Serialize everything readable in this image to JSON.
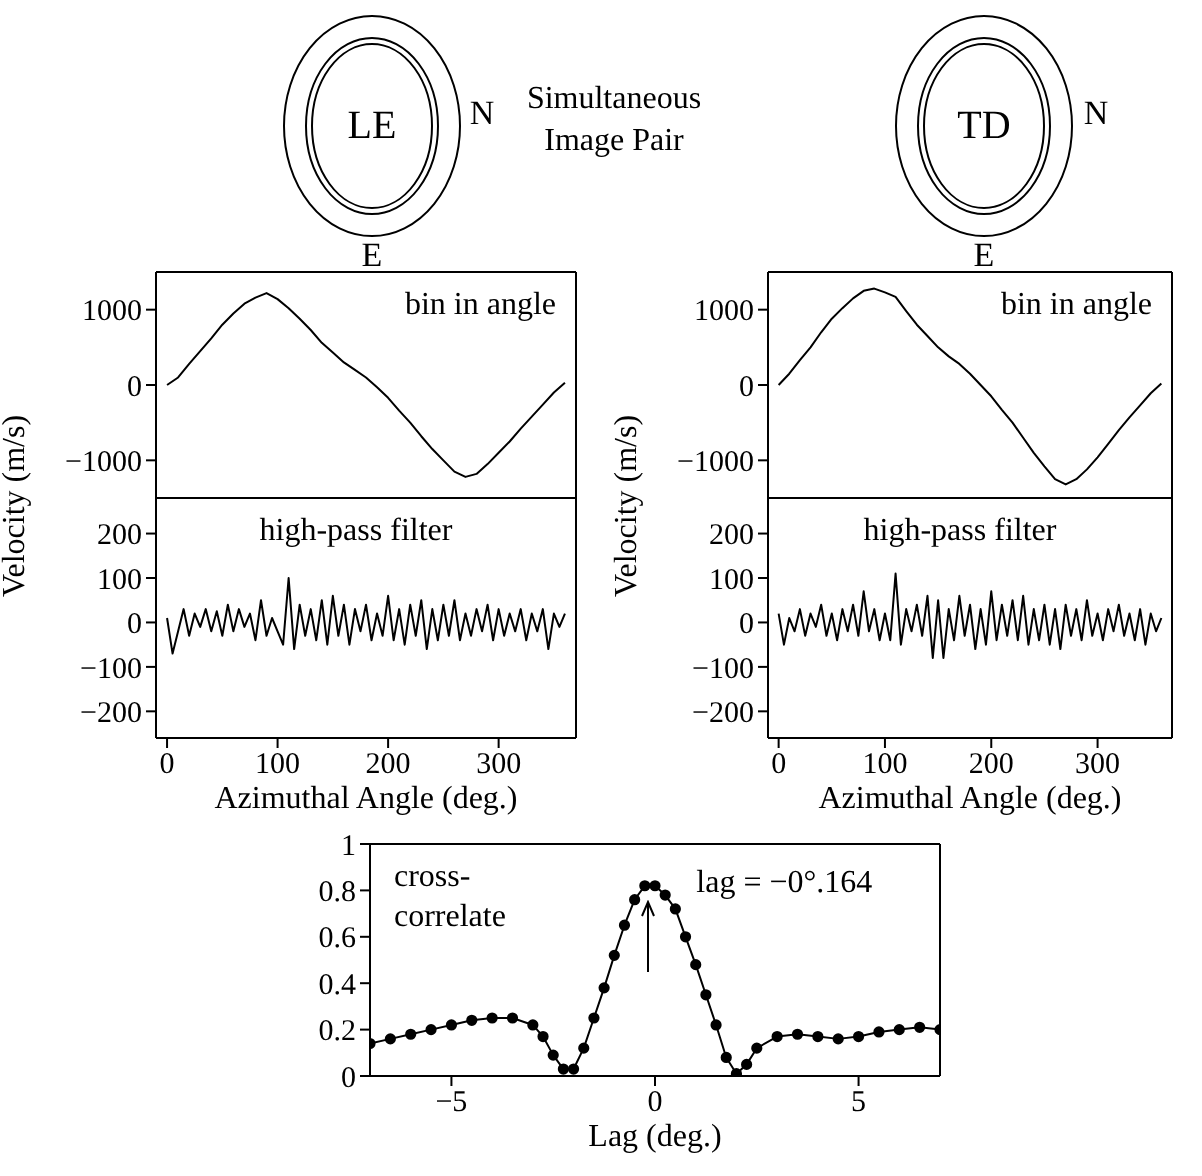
{
  "chart_data": [
    {
      "type": "other",
      "annotations": [
        "LE",
        "N",
        "E",
        "Simultaneous Image Pair",
        "TD",
        "N",
        "E"
      ]
    },
    {
      "type": "line",
      "annotations": [
        "bin in angle"
      ],
      "ylabel": "Velocity (m/s)",
      "tick_labels": "y",
      "xlim": [
        -10,
        370
      ],
      "xticks": [
        0,
        100,
        200,
        300
      ],
      "ylim": [
        -1500,
        1500
      ],
      "yticks": [
        -1000,
        0,
        1000
      ],
      "color": "#000000",
      "x": [
        0,
        10,
        20,
        30,
        40,
        50,
        60,
        70,
        80,
        90,
        100,
        110,
        120,
        130,
        140,
        150,
        160,
        170,
        180,
        190,
        200,
        210,
        220,
        230,
        240,
        250,
        260,
        270,
        280,
        290,
        300,
        310,
        320,
        330,
        340,
        350,
        360
      ],
      "values": [
        0,
        100,
        280,
        450,
        620,
        800,
        950,
        1080,
        1160,
        1220,
        1140,
        1020,
        880,
        730,
        560,
        430,
        300,
        200,
        100,
        -30,
        -170,
        -340,
        -500,
        -680,
        -850,
        -1000,
        -1150,
        -1220,
        -1180,
        -1050,
        -900,
        -750,
        -580,
        -420,
        -260,
        -100,
        30
      ]
    },
    {
      "type": "line",
      "annotations": [
        "high-pass filter"
      ],
      "xlabel": "Azimuthal Angle (deg.)",
      "xlim": [
        -10,
        370
      ],
      "xticks": [
        0,
        100,
        200,
        300
      ],
      "ylim": [
        -260,
        280
      ],
      "yticks": [
        -200,
        -100,
        0,
        100,
        200
      ],
      "color": "#000000",
      "x": [
        0,
        5,
        10,
        15,
        20,
        25,
        30,
        35,
        40,
        45,
        50,
        55,
        60,
        65,
        70,
        75,
        80,
        85,
        90,
        95,
        100,
        105,
        110,
        115,
        120,
        125,
        130,
        135,
        140,
        145,
        150,
        155,
        160,
        165,
        170,
        175,
        180,
        185,
        190,
        195,
        200,
        205,
        210,
        215,
        220,
        225,
        230,
        235,
        240,
        245,
        250,
        255,
        260,
        265,
        270,
        275,
        280,
        285,
        290,
        295,
        300,
        305,
        310,
        315,
        320,
        325,
        330,
        335,
        340,
        345,
        350,
        355,
        360
      ],
      "values": [
        10,
        -70,
        -20,
        30,
        -30,
        20,
        -10,
        30,
        -20,
        25,
        -30,
        40,
        -20,
        30,
        -10,
        20,
        -40,
        50,
        -30,
        10,
        -20,
        -50,
        100,
        -60,
        40,
        -30,
        30,
        -40,
        50,
        -50,
        60,
        -30,
        40,
        -50,
        30,
        -20,
        40,
        -40,
        20,
        -30,
        60,
        -40,
        30,
        -50,
        40,
        -30,
        50,
        -60,
        30,
        -40,
        40,
        -30,
        50,
        -40,
        20,
        -30,
        30,
        -20,
        40,
        -40,
        30,
        -30,
        20,
        -20,
        30,
        -40,
        20,
        -20,
        30,
        -60,
        20,
        -10,
        20
      ]
    },
    {
      "type": "line",
      "annotations": [
        "bin in angle"
      ],
      "ylabel": "Velocity (m/s)",
      "tick_labels": "y",
      "xlim": [
        -10,
        370
      ],
      "xticks": [
        0,
        100,
        200,
        300
      ],
      "ylim": [
        -1500,
        1500
      ],
      "yticks": [
        -1000,
        0,
        1000
      ],
      "color": "#000000",
      "x": [
        0,
        10,
        20,
        30,
        40,
        50,
        60,
        70,
        80,
        90,
        100,
        110,
        120,
        130,
        140,
        150,
        160,
        170,
        180,
        190,
        200,
        210,
        220,
        230,
        240,
        250,
        260,
        270,
        280,
        290,
        300,
        310,
        320,
        330,
        340,
        350,
        360
      ],
      "values": [
        0,
        150,
        330,
        500,
        700,
        880,
        1020,
        1150,
        1250,
        1280,
        1230,
        1170,
        980,
        800,
        650,
        500,
        380,
        280,
        150,
        0,
        -150,
        -330,
        -500,
        -700,
        -900,
        -1080,
        -1250,
        -1320,
        -1250,
        -1120,
        -960,
        -780,
        -600,
        -430,
        -270,
        -110,
        20
      ]
    },
    {
      "type": "line",
      "annotations": [
        "high-pass filter"
      ],
      "xlabel": "Azimuthal Angle (deg.)",
      "xlim": [
        -10,
        370
      ],
      "xticks": [
        0,
        100,
        200,
        300
      ],
      "ylim": [
        -260,
        280
      ],
      "yticks": [
        -200,
        -100,
        0,
        100,
        200
      ],
      "color": "#000000",
      "x": [
        0,
        5,
        10,
        15,
        20,
        25,
        30,
        35,
        40,
        45,
        50,
        55,
        60,
        65,
        70,
        75,
        80,
        85,
        90,
        95,
        100,
        105,
        110,
        115,
        120,
        125,
        130,
        135,
        140,
        145,
        150,
        155,
        160,
        165,
        170,
        175,
        180,
        185,
        190,
        195,
        200,
        205,
        210,
        215,
        220,
        225,
        230,
        235,
        240,
        245,
        250,
        255,
        260,
        265,
        270,
        275,
        280,
        285,
        290,
        295,
        300,
        305,
        310,
        315,
        320,
        325,
        330,
        335,
        340,
        345,
        350,
        355,
        360
      ],
      "values": [
        20,
        -50,
        10,
        -20,
        30,
        -30,
        20,
        -10,
        40,
        -30,
        20,
        -40,
        30,
        -20,
        40,
        -30,
        70,
        -20,
        30,
        -40,
        20,
        -40,
        110,
        -50,
        30,
        -20,
        40,
        -30,
        60,
        -80,
        50,
        -80,
        30,
        -40,
        60,
        -30,
        40,
        -60,
        30,
        -50,
        70,
        -40,
        40,
        -30,
        50,
        -40,
        60,
        -50,
        30,
        -40,
        40,
        -50,
        30,
        -60,
        40,
        -30,
        30,
        -40,
        50,
        -30,
        20,
        -40,
        30,
        -20,
        40,
        -30,
        20,
        -40,
        30,
        -50,
        20,
        -20,
        10
      ]
    },
    {
      "type": "line",
      "xlabel": "Lag (deg.)",
      "annotations": [
        "cross-\ncorrelate",
        {
          "text": "lag = −0°.164",
          "x": -0.164,
          "y": 0.82
        }
      ],
      "xlim": [
        -7,
        7
      ],
      "xticks": [
        -5,
        0,
        5
      ],
      "ylim": [
        0,
        1
      ],
      "yticks": [
        0,
        0.2,
        0.4,
        0.6,
        0.8,
        1
      ],
      "color": "#000000",
      "marker": "circle",
      "x": [
        -7,
        -6.5,
        -6,
        -5.5,
        -5,
        -4.5,
        -4,
        -3.5,
        -3,
        -2.75,
        -2.5,
        -2.25,
        -2,
        -1.75,
        -1.5,
        -1.25,
        -1,
        -0.75,
        -0.5,
        -0.25,
        0,
        0.25,
        0.5,
        0.75,
        1,
        1.25,
        1.5,
        1.75,
        2,
        2.25,
        2.5,
        3,
        3.5,
        4,
        4.5,
        5,
        5.5,
        6,
        6.5,
        7
      ],
      "values": [
        0.14,
        0.16,
        0.18,
        0.2,
        0.22,
        0.24,
        0.25,
        0.25,
        0.22,
        0.17,
        0.09,
        0.03,
        0.03,
        0.12,
        0.25,
        0.38,
        0.52,
        0.65,
        0.76,
        0.82,
        0.82,
        0.78,
        0.72,
        0.6,
        0.48,
        0.35,
        0.22,
        0.08,
        0.01,
        0.05,
        0.12,
        0.17,
        0.18,
        0.17,
        0.16,
        0.17,
        0.19,
        0.2,
        0.21,
        0.2
      ]
    }
  ]
}
